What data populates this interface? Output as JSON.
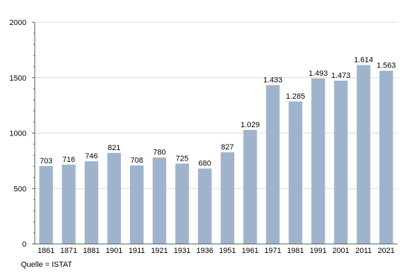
{
  "chart_data": {
    "type": "bar",
    "categories": [
      "1861",
      "1871",
      "1881",
      "1901",
      "1911",
      "1921",
      "1931",
      "1936",
      "1951",
      "1961",
      "1971",
      "1981",
      "1991",
      "2001",
      "2011",
      "2021"
    ],
    "values": [
      703,
      716,
      746,
      821,
      708,
      780,
      725,
      680,
      827,
      1029,
      1433,
      1285,
      1493,
      1473,
      1614,
      1563
    ],
    "data_labels": [
      "703",
      "716",
      "746",
      "821",
      "708",
      "780",
      "725",
      "680",
      "827",
      "1.029",
      "1.433",
      "1.285",
      "1.493",
      "1.473",
      "1.614",
      "1.563"
    ],
    "y_ticks": [
      0,
      500,
      1000,
      1500,
      2000
    ],
    "ylim": [
      0,
      2000
    ],
    "grid": true,
    "bar_color": "#9fb4cc",
    "grid_color": "#d9d9d9",
    "source": "Quelle = ISTAT"
  }
}
